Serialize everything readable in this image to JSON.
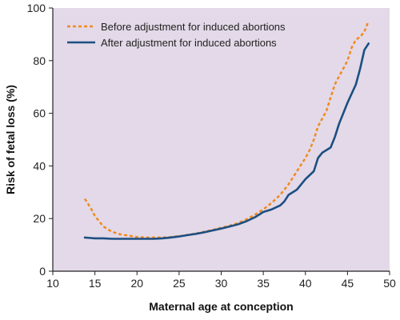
{
  "chart_data": {
    "type": "line",
    "xlabel": "Maternal age at conception",
    "ylabel": "Risk of fetal loss (%)",
    "xlim": [
      10,
      50
    ],
    "ylim": [
      0,
      100
    ],
    "xticks": [
      10,
      15,
      20,
      25,
      30,
      35,
      40,
      45,
      50
    ],
    "yticks": [
      0,
      20,
      40,
      60,
      80,
      100
    ],
    "grid": false,
    "legend_position": "top-left",
    "plot_background": "#e3d9e8",
    "series": [
      {
        "name": "Before adjustment for induced abortions",
        "style": "dashed",
        "color": "#f08a1e",
        "x": [
          13.8,
          14.5,
          15,
          16,
          17,
          18,
          19,
          20,
          21,
          22,
          23,
          24,
          25,
          26,
          27,
          28,
          29,
          30,
          31,
          32,
          33,
          34,
          35,
          36,
          37,
          38,
          39,
          40,
          40.5,
          41,
          41.5,
          42,
          42.5,
          43,
          43.5,
          44,
          44.5,
          45,
          45.5,
          46,
          46.5,
          47,
          47.5
        ],
        "y": [
          27.5,
          24,
          21,
          17,
          15,
          14,
          13.5,
          13,
          12.8,
          12.8,
          12.8,
          13,
          13.3,
          13.8,
          14.3,
          15,
          15.7,
          16.5,
          17.3,
          18.3,
          19.7,
          21.5,
          23.5,
          26,
          29,
          33,
          38,
          43,
          46,
          50,
          55,
          58,
          61,
          66,
          71,
          74,
          77,
          80,
          85,
          88,
          89,
          91,
          95
        ]
      },
      {
        "name": "After adjustment for induced abortions",
        "style": "solid",
        "color": "#1c4f82",
        "x": [
          13.8,
          14.5,
          15,
          16,
          17,
          18,
          19,
          20,
          21,
          22,
          23,
          24,
          25,
          26,
          27,
          28,
          29,
          30,
          31,
          32,
          33,
          34,
          35,
          36,
          37,
          37.5,
          38,
          39,
          39.5,
          40,
          41,
          41.5,
          42,
          43,
          43.5,
          44,
          44.5,
          45,
          46,
          46.5,
          47,
          47.5
        ],
        "y": [
          12.8,
          12.6,
          12.5,
          12.5,
          12.3,
          12.3,
          12.3,
          12.3,
          12.3,
          12.3,
          12.5,
          12.8,
          13.2,
          13.7,
          14.2,
          14.8,
          15.5,
          16.2,
          17,
          17.8,
          19,
          20.5,
          22.5,
          23.5,
          25,
          26.5,
          29,
          31,
          33,
          35,
          38,
          43,
          45,
          47,
          51,
          56,
          60,
          64,
          71,
          77,
          84,
          86.5
        ]
      }
    ]
  }
}
